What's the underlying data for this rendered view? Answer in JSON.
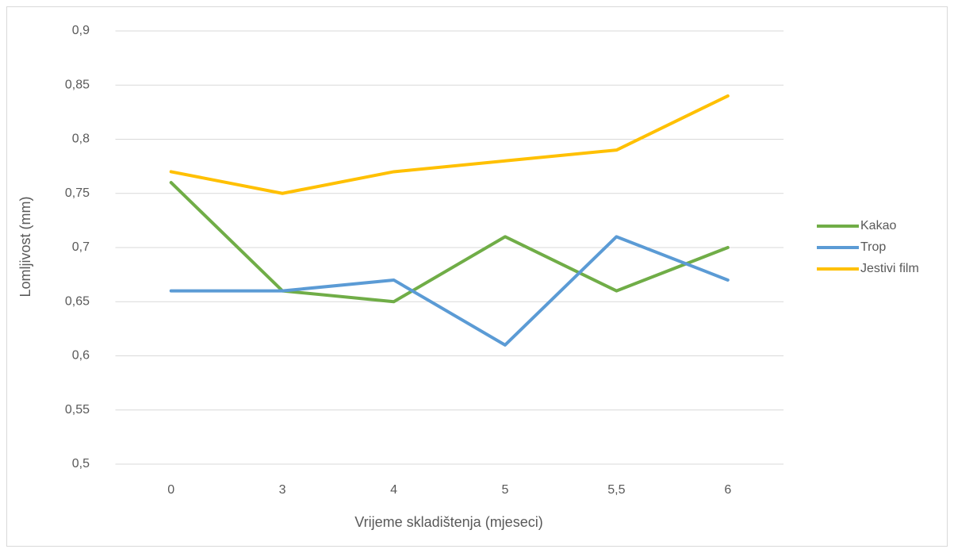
{
  "chart_data": {
    "type": "line",
    "x_label": "Vrijeme skladištenja (mjeseci)",
    "y_label": "Lomljivost (mm)",
    "categories": [
      "0",
      "3",
      "4",
      "5",
      "5,5",
      "6"
    ],
    "series": [
      {
        "name": "Kakao",
        "color": "#70ad47",
        "values": [
          0.76,
          0.66,
          0.65,
          0.71,
          0.66,
          0.7
        ]
      },
      {
        "name": "Trop",
        "color": "#5b9bd5",
        "values": [
          0.66,
          0.66,
          0.67,
          0.61,
          0.71,
          0.67
        ]
      },
      {
        "name": "Jestivi film",
        "color": "#ffc000",
        "values": [
          0.77,
          0.75,
          0.77,
          0.78,
          0.79,
          0.84
        ]
      }
    ],
    "ylim": [
      0.5,
      0.9
    ],
    "yticks": [
      {
        "value": 0.5,
        "label": "0,5"
      },
      {
        "value": 0.55,
        "label": "0,55"
      },
      {
        "value": 0.6,
        "label": "0,6"
      },
      {
        "value": 0.65,
        "label": "0,65"
      },
      {
        "value": 0.7,
        "label": "0,7"
      },
      {
        "value": 0.75,
        "label": "0,75"
      },
      {
        "value": 0.8,
        "label": "0,8"
      },
      {
        "value": 0.85,
        "label": "0,85"
      },
      {
        "value": 0.9,
        "label": "0,9"
      }
    ],
    "grid": true,
    "legend": "right"
  }
}
